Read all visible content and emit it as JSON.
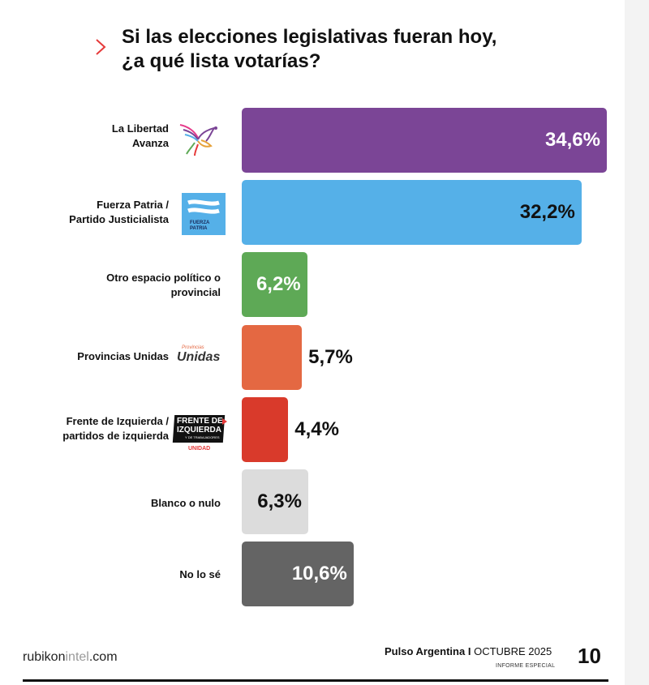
{
  "title_lines": [
    "Si las elecciones legislativas fueran hoy,",
    "¿a qué lista votarías?"
  ],
  "colors": {
    "lla": "#7b4596",
    "fp": "#55b0e8",
    "otro": "#5ea956",
    "pu": "#e46842",
    "fit": "#d93a2b",
    "blanco": "#dcdcdc",
    "nose": "#646464",
    "accent": "#e63a3a"
  },
  "chart_data": {
    "type": "bar",
    "orientation": "horizontal",
    "title": "Si las elecciones legislativas fueran hoy, ¿a qué lista votarías?",
    "categories": [
      "La Libertad Avanza",
      "Fuerza Patria / Partido Justicialista",
      "Otro espacio político o provincial",
      "Provincias Unidas",
      "Frente de Izquierda / partidos de izquierda",
      "Blanco o nulo",
      "No lo sé"
    ],
    "values": [
      34.6,
      32.2,
      6.2,
      5.7,
      4.4,
      6.3,
      10.6
    ],
    "value_labels": [
      "34,6%",
      "32,2%",
      "6,2%",
      "5,7%",
      "4,4%",
      "6,3%",
      "10,6%"
    ],
    "unit": "%",
    "grid": false,
    "legend": "none"
  },
  "rows": [
    {
      "label_lines": [
        "La Libertad",
        "Avanza"
      ],
      "logo": "bird-logo-icon"
    },
    {
      "label_lines": [
        "Fuerza Patria /",
        "Partido Justicialista"
      ],
      "logo": "flag-logo-icon",
      "logo_text": [
        "FUERZA",
        "PATRIA"
      ]
    },
    {
      "label_lines": [
        "Otro espacio político o",
        "provincial"
      ],
      "logo": ""
    },
    {
      "label_lines": [
        "Provincias Unidas"
      ],
      "logo": "provincias-unidas-logo",
      "logo_text": [
        "Provincias",
        "Unidas"
      ]
    },
    {
      "label_lines": [
        "Frente de Izquierda /",
        "partidos de izquierda"
      ],
      "logo": "fit-logo",
      "logo_text": [
        "FRENTE DE",
        "IZQUIERDA",
        "Y DE TRABAJADORES",
        "UNIDAD"
      ]
    },
    {
      "label_lines": [
        "Blanco o nulo"
      ],
      "logo": ""
    },
    {
      "label_lines": [
        "No lo sé"
      ],
      "logo": ""
    }
  ],
  "footer": {
    "site_main": "rubikon",
    "site_light": "intel",
    "site_tld": ".com",
    "publication": "Pulso Argentina",
    "separator": "I",
    "date": "OCTUBRE 2025",
    "sub": "INFORME ESPECIAL",
    "page": "10"
  }
}
